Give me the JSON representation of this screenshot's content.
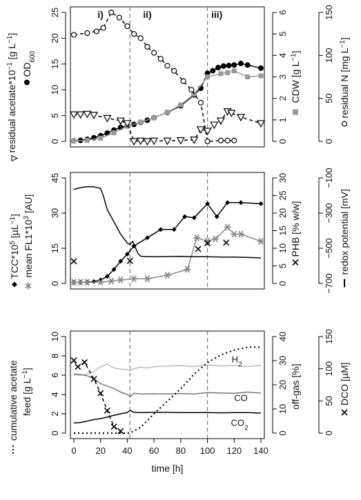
{
  "chart_data": [
    {
      "panel": "top",
      "type": "scatter",
      "phase_labels": [
        "i)",
        "ii)",
        "iii)"
      ],
      "phase_boundaries_h": [
        42,
        100
      ],
      "xlim": [
        0,
        140
      ],
      "left_axis": {
        "label_parts": [
          "residual acetate*10",
          "−1",
          " [g L",
          "−1",
          "]"
        ],
        "secondary_label_parts": [
          "OD",
          "600"
        ],
        "ylim": [
          0,
          25
        ],
        "ticks": [
          "0",
          "5",
          "10",
          "15",
          "20",
          "25"
        ]
      },
      "mid_axis": {
        "label_parts": [
          "CDW [g L",
          "−1",
          "]"
        ],
        "ylim": [
          0,
          6
        ],
        "ticks": [
          "0",
          "1",
          "2",
          "3",
          "4",
          "5",
          "6"
        ]
      },
      "right_axis": {
        "label_parts": [
          "residual N [mg L",
          "−1",
          "]"
        ],
        "ylim": [
          0,
          150
        ],
        "ticks": [
          "0",
          "50",
          "100",
          "150"
        ]
      },
      "series": [
        {
          "key": "od600",
          "color": "#000000",
          "marker": "filled-circle",
          "line": "solid",
          "x": [
            0,
            5,
            10,
            15,
            20,
            25,
            30,
            35,
            40,
            45,
            50,
            55,
            60,
            70,
            80,
            90,
            95,
            100,
            104,
            108,
            112,
            116,
            120,
            125,
            130,
            140
          ],
          "y": [
            0.1,
            0.2,
            0.4,
            0.7,
            1.1,
            1.6,
            2.2,
            2.7,
            3.0,
            3.3,
            3.7,
            4.1,
            4.6,
            5.6,
            6.9,
            9.0,
            10.3,
            13.2,
            13.7,
            14.3,
            14.6,
            14.7,
            14.8,
            15.1,
            14.8,
            14.2
          ]
        },
        {
          "key": "cdw",
          "color": "#999999",
          "marker": "filled-square",
          "line": "solid",
          "x": [
            0,
            10,
            20,
            30,
            40,
            50,
            60,
            70,
            80,
            90,
            100,
            110,
            115,
            120,
            130,
            140
          ],
          "y": [
            0.02,
            0.05,
            0.15,
            0.4,
            0.7,
            0.9,
            1.1,
            1.35,
            1.7,
            2.2,
            3.0,
            3.15,
            3.2,
            3.28,
            3.0,
            3.05
          ]
        },
        {
          "key": "residual_n",
          "color": "#000000",
          "marker": "open-circle",
          "line": "dashed",
          "x": [
            0,
            10,
            17,
            22,
            28,
            34,
            40,
            45,
            50,
            55,
            60,
            65,
            70,
            75,
            82,
            88,
            95,
            100,
            110,
            115,
            120
          ],
          "y": [
            124,
            126,
            128,
            132,
            150,
            144,
            134,
            125,
            120,
            110,
            103,
            96,
            88,
            82,
            70,
            60,
            45,
            0,
            1,
            1,
            1
          ]
        },
        {
          "key": "residual_acetate",
          "color": "#000000",
          "marker": "open-triangle-down",
          "line": "dashed",
          "x": [
            0,
            5,
            10,
            15,
            25,
            35,
            40,
            45,
            50,
            55,
            60,
            70,
            80,
            90,
            95,
            100,
            105,
            110,
            115,
            118,
            125,
            140
          ],
          "y": [
            5.2,
            5.2,
            5.3,
            5.1,
            4.5,
            4.0,
            3.5,
            0.0,
            0.1,
            0.0,
            0.1,
            0.1,
            0.2,
            0.3,
            2.3,
            2.0,
            3.2,
            4.0,
            5.8,
            5.5,
            4.7,
            3.5
          ]
        }
      ]
    },
    {
      "panel": "middle",
      "type": "line",
      "xlim": [
        0,
        140
      ],
      "left_axis": {
        "label_parts": [
          "TCC*10",
          "5",
          " [µL",
          "−1",
          "]"
        ],
        "secondary_label_parts": [
          "mean FL1*10",
          "3",
          " [AU]"
        ],
        "ylim": [
          0,
          45
        ],
        "ticks": [
          "0",
          "15",
          "30",
          "45"
        ]
      },
      "mid_axis": {
        "label_parts": [
          "PHB [% w/w]"
        ],
        "ylim": [
          0,
          30
        ],
        "ticks": [
          "0",
          "5",
          "10",
          "15",
          "20",
          "25",
          "30"
        ]
      },
      "right_axis": {
        "label_parts": [
          "redox potential [mV]"
        ],
        "ylim": [
          -700,
          -100
        ],
        "ticks": [
          "−700",
          "−500",
          "−300",
          "−100"
        ]
      },
      "series": [
        {
          "key": "tcc",
          "color": "#000000",
          "marker": "filled-diamond",
          "line": "solid",
          "x": [
            0,
            5,
            10,
            15,
            20,
            25,
            30,
            35,
            40,
            45,
            55,
            65,
            75,
            83,
            90,
            100,
            107,
            115,
            125,
            140
          ],
          "y": [
            0.5,
            0.5,
            0.6,
            0.8,
            1.5,
            3.0,
            6.0,
            9.5,
            12.5,
            16.0,
            19.5,
            23.0,
            23.0,
            28.5,
            28.0,
            34.0,
            28.5,
            34.5,
            34.5,
            34.0
          ]
        },
        {
          "key": "mean_fl1",
          "color": "#888888",
          "marker": "asterisk",
          "line": "solid",
          "x": [
            0,
            5,
            10,
            20,
            28,
            35,
            45,
            55,
            70,
            85,
            92,
            100,
            106,
            115,
            120,
            125,
            140
          ],
          "y": [
            0.5,
            0.5,
            0.5,
            0.5,
            1.0,
            1.5,
            2.0,
            2.0,
            3.5,
            6.0,
            19.5,
            18.0,
            19.0,
            24.0,
            21.0,
            21.0,
            18.0
          ]
        },
        {
          "key": "phb",
          "color": "#000000",
          "marker": "x",
          "line": "none",
          "x": [
            0,
            42,
            93,
            100,
            114
          ],
          "y": [
            6.3,
            6.4,
            9.8,
            11.4,
            11.6
          ]
        },
        {
          "key": "redox",
          "color": "#000000",
          "marker": "none",
          "line": "solid",
          "x": [
            0,
            5,
            10,
            15,
            20,
            22,
            25,
            30,
            35,
            40,
            42,
            44,
            46,
            48,
            50,
            55,
            60,
            70,
            80,
            90,
            100,
            110,
            120,
            130,
            140
          ],
          "y": [
            -165,
            -155,
            -150,
            -150,
            -160,
            -200,
            -280,
            -350,
            -420,
            -470,
            -480,
            -460,
            -495,
            -530,
            -545,
            -548,
            -548,
            -547,
            -546,
            -548,
            -548,
            -550,
            -550,
            -552,
            -555
          ]
        }
      ]
    },
    {
      "panel": "bottom",
      "type": "line",
      "xlabel": "time [h]",
      "xlim": [
        0,
        140
      ],
      "xticks": [
        "0",
        "20",
        "40",
        "60",
        "80",
        "100",
        "120",
        "140"
      ],
      "left_axis": {
        "label_parts": [
          "cumulative acetate"
        ],
        "secondary_label_parts": [
          "feed [g L",
          "−1",
          "]"
        ],
        "ylim": [
          0,
          10
        ],
        "ticks": [
          "0",
          "2",
          "4",
          "6",
          "8",
          "10"
        ]
      },
      "mid_axis": {
        "label_parts": [
          "off-gas [%]"
        ],
        "ylim": [
          0,
          40
        ],
        "ticks": [
          "0",
          "10",
          "20",
          "30",
          "40"
        ]
      },
      "right_axis": {
        "label_parts": [
          "DCO [µM]"
        ],
        "ylim": [
          0,
          150
        ],
        "ticks": [
          "0",
          "50",
          "100",
          "150"
        ]
      },
      "series_labels": [
        {
          "parts": [
            "H",
            "2"
          ],
          "x": 122,
          "y_offgas": 30.5
        },
        {
          "parts": [
            "CO"
          ],
          "x": 125,
          "y_offgas": 14.5
        },
        {
          "parts": [
            "CO",
            "2"
          ],
          "x": 124,
          "y_offgas": 4.2
        }
      ],
      "series": [
        {
          "key": "h2",
          "color": "#bbbbbb",
          "marker": "none",
          "line": "solid",
          "x": [
            0,
            5,
            10,
            15,
            20,
            25,
            30,
            35,
            40,
            42,
            45,
            50,
            55,
            60,
            70,
            80,
            90,
            100,
            110,
            120,
            130,
            140
          ],
          "y": [
            24.2,
            24.0,
            24.5,
            25.5,
            27.5,
            28.5,
            27.0,
            26.5,
            26.3,
            25.8,
            26.7,
            27.3,
            27.0,
            27.5,
            27.8,
            28.0,
            27.6,
            28.3,
            27.8,
            28.0,
            27.6,
            28.0
          ]
        },
        {
          "key": "co",
          "color": "#777777",
          "marker": "none",
          "line": "solid",
          "x": [
            0,
            5,
            10,
            15,
            20,
            25,
            30,
            35,
            40,
            42,
            45,
            50,
            60,
            70,
            80,
            90,
            100,
            110,
            120,
            130,
            140
          ],
          "y": [
            24.5,
            24.2,
            23.8,
            22.5,
            20.5,
            19.5,
            18.5,
            17.0,
            16.0,
            15.0,
            16.5,
            16.2,
            16.3,
            16.2,
            16.4,
            16.2,
            16.8,
            16.6,
            16.5,
            17.0,
            16.6
          ]
        },
        {
          "key": "co2",
          "color": "#000000",
          "marker": "none",
          "line": "solid",
          "x": [
            0,
            5,
            10,
            15,
            20,
            25,
            30,
            35,
            40,
            42,
            45,
            50,
            60,
            70,
            80,
            90,
            100,
            110,
            120,
            130,
            140
          ],
          "y": [
            4.2,
            4.4,
            5.0,
            5.6,
            6.0,
            6.6,
            7.4,
            8.0,
            8.5,
            9.4,
            8.6,
            8.5,
            8.6,
            8.6,
            8.5,
            8.5,
            8.5,
            8.4,
            8.5,
            8.5,
            8.3
          ]
        },
        {
          "key": "cumulative_acetate_feed",
          "color": "#000000",
          "marker": "none",
          "line": "dotted",
          "x": [
            0,
            42,
            50,
            60,
            70,
            80,
            90,
            100,
            110,
            120,
            130,
            140
          ],
          "y": [
            0,
            0,
            0.6,
            2.0,
            3.3,
            4.6,
            6.1,
            7.3,
            8.1,
            8.6,
            8.9,
            8.9
          ]
        },
        {
          "key": "dco",
          "color": "#000000",
          "marker": "x",
          "line": "dashed",
          "x": [
            0,
            3,
            8,
            15,
            20,
            25,
            30,
            35
          ],
          "y": [
            113,
            103,
            110,
            84,
            62,
            35,
            10,
            3
          ]
        }
      ]
    }
  ]
}
